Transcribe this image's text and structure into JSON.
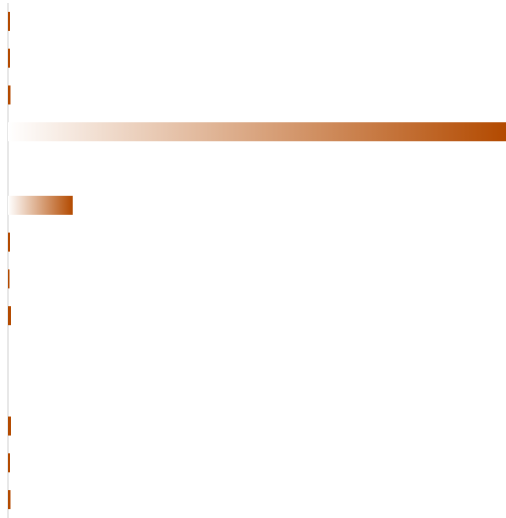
{
  "chart_data": {
    "type": "barh",
    "categories": [
      null,
      null,
      null,
      null,
      null,
      null,
      null,
      null,
      null,
      null,
      null,
      null,
      null,
      null
    ],
    "values": [
      0.4,
      0.4,
      0.5,
      100,
      0,
      13,
      0.4,
      0.3,
      0.6,
      0,
      0,
      0.6,
      0.4,
      0.5
    ],
    "color": "#b34a00",
    "xlim": [
      0,
      100
    ]
  }
}
